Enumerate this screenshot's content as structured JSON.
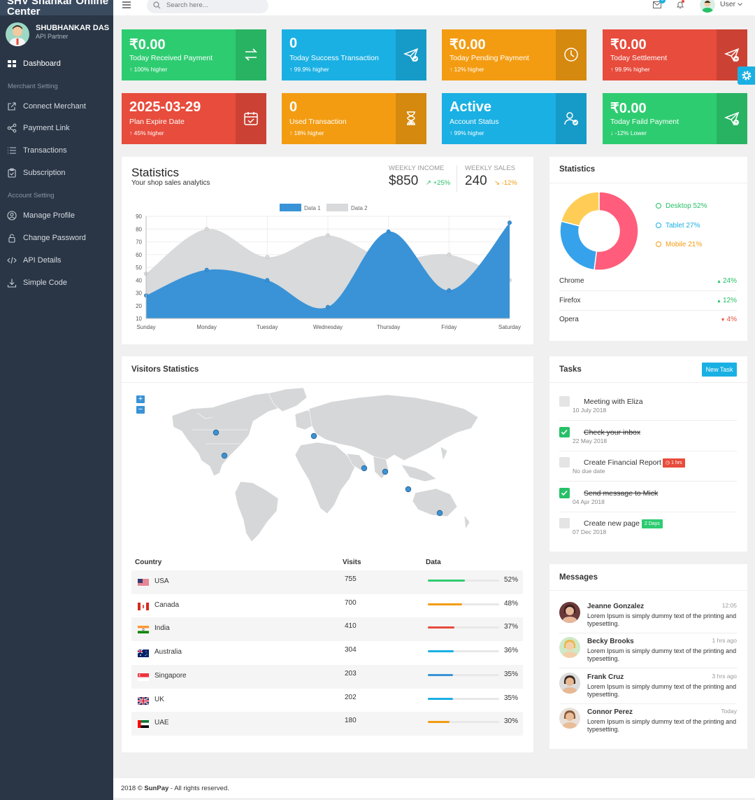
{
  "sidebar": {
    "brand": "SHV Shankar Online Center",
    "user_name": "SHUBHANKAR DAS",
    "user_role": "API Partner",
    "dashboard": "Dashboard",
    "merchant_heading": "Merchant Setting",
    "merchant_items": [
      "Connect Merchant",
      "Payment Link",
      "Transactions",
      "Subscription"
    ],
    "account_heading": "Account Setting",
    "account_items": [
      "Manage Profile",
      "Change Password",
      "API Details",
      "Simple Code"
    ]
  },
  "topbar": {
    "search_placeholder": "Search here...",
    "mail_badge": "2",
    "user_label": "User"
  },
  "cards": [
    {
      "value": "₹0.00",
      "label": "Today Received Payment",
      "sub": "100% higher",
      "color": "#2ecc71",
      "icon": "transfer-icon"
    },
    {
      "value": "0",
      "label": "Today Success Transaction",
      "sub": "99.9% higher",
      "color": "#1ab0e3",
      "icon": "send-check-icon"
    },
    {
      "value": "₹0.00",
      "label": "Today Pending Payment",
      "sub": "12% higher",
      "color": "#f39c12",
      "icon": "clock-icon"
    },
    {
      "value": "₹0.00",
      "label": "Today Settlement",
      "sub": "99.9% higher",
      "color": "#e74c3c",
      "icon": "send-minus-icon"
    },
    {
      "value": "2025-03-29",
      "label": "Plan Expire Date",
      "sub": "45% higher",
      "color": "#e74c3c",
      "icon": "calendar-check-icon"
    },
    {
      "value": "0",
      "label": "Used Transaction",
      "sub": "18% higher",
      "color": "#f39c12",
      "icon": "hourglass-icon"
    },
    {
      "value": "Active",
      "label": "Account Status",
      "sub": "99% higher",
      "color": "#1ab0e3",
      "icon": "user-check-icon"
    },
    {
      "value": "₹0.00",
      "label": "Today Faild Payment",
      "sub": "-12% Lower",
      "color": "#2ecc71",
      "icon": "send-alert-icon"
    }
  ],
  "stats": {
    "title": "Statistics",
    "subtitle": "Your shop sales analytics",
    "weekly_income_label": "WEEKLY INCOME",
    "weekly_income": "$850",
    "weekly_income_change": "+25%",
    "weekly_sales_label": "WEEKLY SALES",
    "weekly_sales": "240",
    "weekly_sales_change": "-12%"
  },
  "chart_data": {
    "type": "area",
    "categories": [
      "Sunday",
      "Monday",
      "Tuesday",
      "Wednesday",
      "Thursday",
      "Friday",
      "Saturday"
    ],
    "series": [
      {
        "name": "Data 1",
        "values": [
          28,
          48,
          40,
          19,
          78,
          32,
          85
        ],
        "color": "#3a93d6"
      },
      {
        "name": "Data 2",
        "values": [
          45,
          80,
          58,
          75,
          56,
          60,
          40
        ],
        "color": "#d8dadc"
      }
    ],
    "ylim": [
      10,
      90
    ],
    "yticks": [
      10,
      20,
      30,
      40,
      50,
      60,
      70,
      80,
      90
    ],
    "legend": "top"
  },
  "donut": {
    "title": "Statistics",
    "segments": [
      {
        "label": "Desktop 52%",
        "value": 52,
        "color": "#ff5d7b",
        "text_color": "#27c067"
      },
      {
        "label": "Tablet 27%",
        "value": 27,
        "color": "#36a2eb",
        "text_color": "#1ab0e3"
      },
      {
        "label": "Mobile 21%",
        "value": 21,
        "color": "#ffcd56",
        "text_color": "#f39c12"
      }
    ],
    "browsers": [
      {
        "name": "Chrome",
        "change": "24%",
        "up": true
      },
      {
        "name": "Firefox",
        "change": "12%",
        "up": true
      },
      {
        "name": "Opera",
        "change": "4%",
        "up": false
      }
    ]
  },
  "visitors": {
    "title": "Visitors Statistics",
    "zoom_in": "+",
    "zoom_out": "−",
    "col_country": "Country",
    "col_visits": "Visits",
    "col_data": "Data",
    "rows": [
      {
        "country": "USA",
        "visits": "755",
        "pct": "52%",
        "fill": 0.52,
        "color": "#2ecc71",
        "flag": "usa-flag-icon"
      },
      {
        "country": "Canada",
        "visits": "700",
        "pct": "48%",
        "fill": 0.48,
        "color": "#f39c12",
        "flag": "canada-flag-icon"
      },
      {
        "country": "India",
        "visits": "410",
        "pct": "37%",
        "fill": 0.37,
        "color": "#e74c3c",
        "flag": "india-flag-icon"
      },
      {
        "country": "Australia",
        "visits": "304",
        "pct": "36%",
        "fill": 0.36,
        "color": "#1ab0e3",
        "flag": "australia-flag-icon"
      },
      {
        "country": "Singapore",
        "visits": "203",
        "pct": "35%",
        "fill": 0.35,
        "color": "#3a93d6",
        "flag": "singapore-flag-icon"
      },
      {
        "country": "UK",
        "visits": "202",
        "pct": "35%",
        "fill": 0.35,
        "color": "#1ab0e3",
        "flag": "uk-flag-icon"
      },
      {
        "country": "UAE",
        "visits": "180",
        "pct": "30%",
        "fill": 0.3,
        "color": "#f39c12",
        "flag": "uae-flag-icon"
      }
    ]
  },
  "tasks": {
    "title": "Tasks",
    "new_task": "New Task",
    "items": [
      {
        "title": "Meeting with Eliza",
        "date": "10 July 2018",
        "done": false,
        "badge": ""
      },
      {
        "title": "Check your inbox",
        "date": "22 May 2018",
        "done": true,
        "badge": ""
      },
      {
        "title": "Create Financial Report",
        "date": "No due date",
        "done": false,
        "badge": "1 hrs",
        "badge_color": "#e74c3c"
      },
      {
        "title": "Send message to Mick",
        "date": "04 Apr 2018",
        "done": true,
        "badge": ""
      },
      {
        "title": "Create new page",
        "date": "07 Dec 2018",
        "done": false,
        "badge": "2 Days",
        "badge_color": "#2ecc71"
      }
    ]
  },
  "messages": {
    "title": "Messages",
    "items": [
      {
        "name": "Jeanne Gonzalez",
        "time": "12:05",
        "text": "Lorem Ipsum is simply dummy text of the printing and typesetting."
      },
      {
        "name": "Becky Brooks",
        "time": "1 hrs ago",
        "text": "Lorem Ipsum is simply dummy text of the printing and typesetting."
      },
      {
        "name": "Frank Cruz",
        "time": "3 hrs ago",
        "text": "Lorem Ipsum is simply dummy text of the printing and typesetting."
      },
      {
        "name": "Connor Perez",
        "time": "Today",
        "text": "Lorem Ipsum is simply dummy text of the printing and typesetting."
      }
    ]
  },
  "footer": {
    "prefix": "2018 ©",
    "brand": "SunPay",
    "suffix": "- All rights reserved."
  }
}
